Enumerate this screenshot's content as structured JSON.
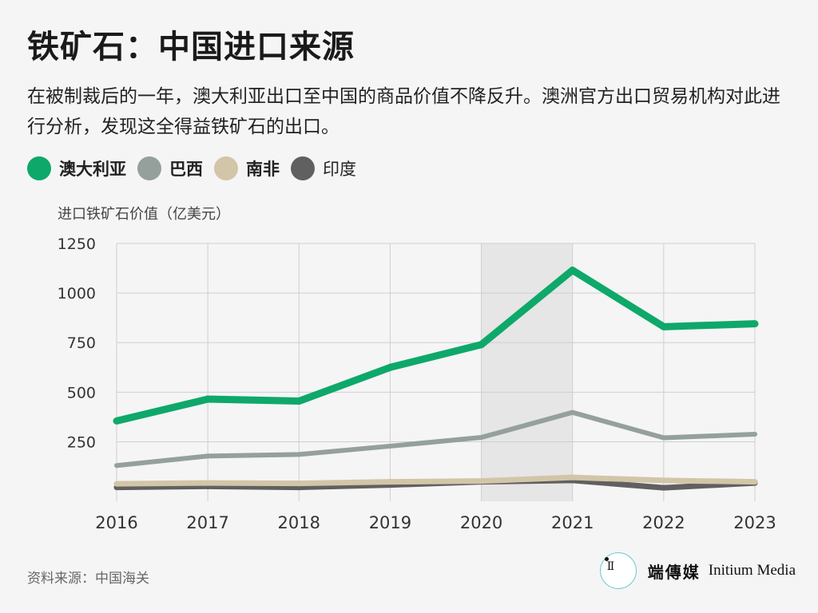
{
  "header": {
    "title": "铁矿石：中国进口来源",
    "subtitle": "在被制裁后的一年，澳大利亚出口至中国的商品价值不降反升。澳洲官方出口贸易机构对此进行分析，发现这全得益铁矿石的出口。"
  },
  "footer": {
    "source": "资料来源：中国海关",
    "brand_cn": "端傳媒",
    "brand_en": "Initium Media"
  },
  "chart_data": {
    "type": "line",
    "title": "",
    "xlabel": "",
    "ylabel": "进口铁矿石价值（亿美元）",
    "x": [
      2016,
      2017,
      2018,
      2019,
      2020,
      2021,
      2022,
      2023
    ],
    "ylim": [
      -50,
      1250
    ],
    "yticks": [
      250,
      500,
      750,
      1000,
      1250
    ],
    "grid": true,
    "legend_position": "top-left",
    "highlight_range": [
      2020,
      2021
    ],
    "series": [
      {
        "name": "澳大利亚",
        "color": "#0ea86a",
        "values": [
          355,
          465,
          455,
          625,
          740,
          1115,
          830,
          845
        ]
      },
      {
        "name": "巴西",
        "color": "#95a09c",
        "values": [
          130,
          178,
          186,
          228,
          272,
          398,
          270,
          288
        ]
      },
      {
        "name": "南非",
        "color": "#d2c5a8",
        "values": [
          38,
          42,
          40,
          48,
          52,
          70,
          55,
          48
        ]
      },
      {
        "name": "印度",
        "color": "#606060",
        "values": [
          20,
          25,
          20,
          32,
          48,
          55,
          18,
          42
        ]
      }
    ]
  }
}
